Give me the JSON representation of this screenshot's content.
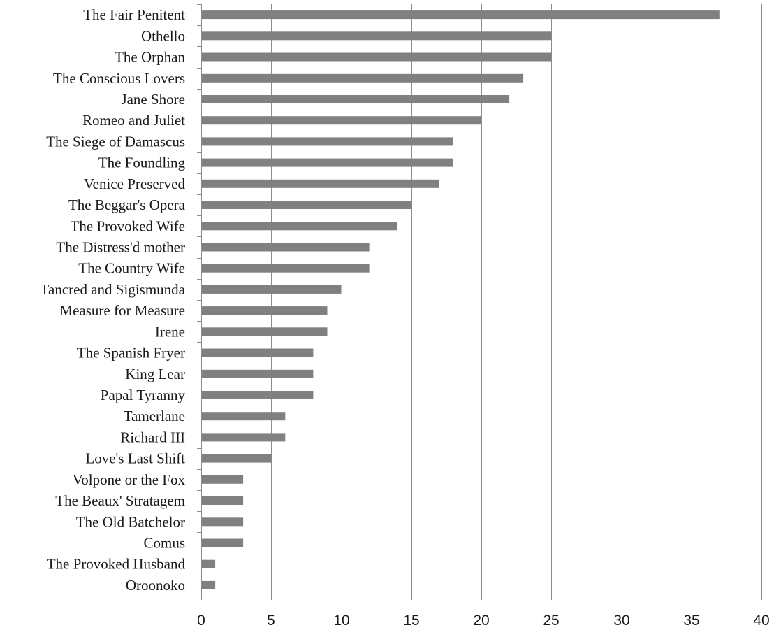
{
  "chart_data": {
    "type": "bar",
    "orientation": "horizontal",
    "title": "",
    "xlabel": "",
    "ylabel": "",
    "xlim": [
      0,
      40
    ],
    "x_ticks": [
      0,
      5,
      10,
      15,
      20,
      25,
      30,
      35,
      40
    ],
    "x_tick_labels": [
      "0",
      "5",
      "10",
      "15",
      "20",
      "25",
      "30",
      "35",
      "40"
    ],
    "grid": "vertical",
    "legend": "none",
    "bar_color": "#808080",
    "categories": [
      "The Fair Penitent",
      "Othello",
      "The Orphan",
      "The Conscious Lovers",
      "Jane Shore",
      "Romeo and Juliet",
      "The Siege of Damascus",
      "The Foundling",
      "Venice Preserved",
      "The Beggar's Opera",
      "The Provoked Wife",
      "The Distress'd mother",
      "The Country Wife",
      "Tancred and Sigismunda",
      "Measure for Measure",
      "Irene",
      "The Spanish Fryer",
      "King Lear",
      "Papal Tyranny",
      "Tamerlane",
      "Richard III",
      "Love's Last Shift",
      "Volpone or the Fox",
      "The Beaux' Stratagem",
      "The Old Batchelor",
      "Comus",
      "The Provoked Husband",
      "Oroonoko"
    ],
    "values": [
      37,
      25,
      25,
      23,
      22,
      20,
      18,
      18,
      17,
      15,
      14,
      12,
      12,
      10,
      9,
      9,
      8,
      8,
      8,
      6,
      6,
      5,
      3,
      3,
      3,
      3,
      1,
      1
    ]
  }
}
